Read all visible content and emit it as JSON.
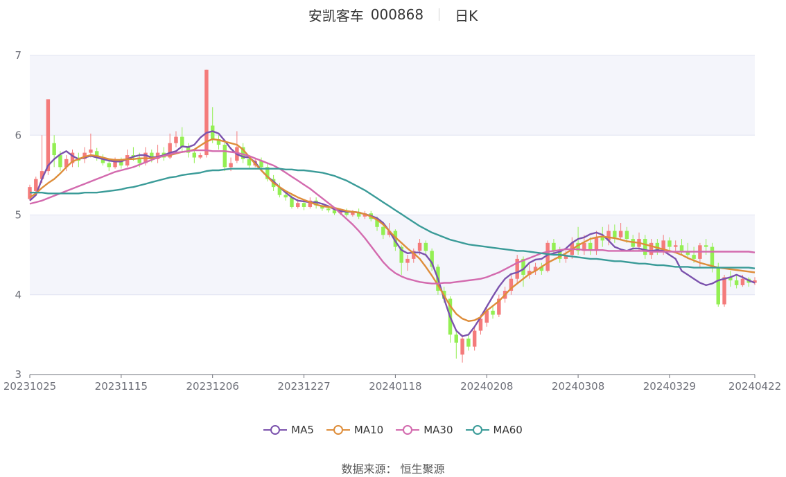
{
  "header": {
    "title": "安凯客车",
    "ticker": "000868",
    "period": "日K"
  },
  "source": "数据来源： 恒生聚源",
  "colors": {
    "up": "#f47b7b",
    "down": "#93ef53",
    "band": "#f4f5fb",
    "grid": "#e0e4f2",
    "axis": "#6e7079"
  },
  "chart_data": {
    "type": "candlestick",
    "y_ticks": [
      3,
      4,
      5,
      6,
      7
    ],
    "ylim": [
      3,
      7
    ],
    "x_tick_labels": [
      "20231025",
      "20231115",
      "20231206",
      "20231227",
      "20240118",
      "20240208",
      "20240308",
      "20240329",
      "20240422"
    ],
    "x_tick_index": [
      0,
      15,
      30,
      45,
      60,
      75,
      90,
      105,
      119
    ],
    "legend_position": "bottom",
    "series": [
      {
        "name": "MA5",
        "color": "#7b52ad",
        "values": [
          5.18,
          5.25,
          5.45,
          5.62,
          5.7,
          5.76,
          5.8,
          5.74,
          5.7,
          5.72,
          5.74,
          5.72,
          5.7,
          5.68,
          5.67,
          5.67,
          5.7,
          5.73,
          5.75,
          5.75,
          5.72,
          5.73,
          5.75,
          5.78,
          5.8,
          5.86,
          5.85,
          5.88,
          5.97,
          6.03,
          6.05,
          6.02,
          5.93,
          5.83,
          5.76,
          5.73,
          5.72,
          5.66,
          5.56,
          5.48,
          5.42,
          5.35,
          5.28,
          5.22,
          5.18,
          5.17,
          5.16,
          5.16,
          5.14,
          5.11,
          5.07,
          5.05,
          5.04,
          5.04,
          5.03,
          5.01,
          4.99,
          4.96,
          4.9,
          4.8,
          4.67,
          4.56,
          4.52,
          4.53,
          4.53,
          4.5,
          4.4,
          4.2,
          3.95,
          3.72,
          3.55,
          3.48,
          3.5,
          3.6,
          3.72,
          3.85,
          3.98,
          4.1,
          4.2,
          4.26,
          4.28,
          4.32,
          4.4,
          4.44,
          4.45,
          4.5,
          4.52,
          4.54,
          4.58,
          4.65,
          4.7,
          4.72,
          4.76,
          4.78,
          4.75,
          4.68,
          4.6,
          4.57,
          4.55,
          4.58,
          4.58,
          4.56,
          4.55,
          4.56,
          4.55,
          4.5,
          4.45,
          4.3,
          4.25,
          4.2,
          4.15,
          4.12,
          4.14,
          4.18,
          4.2,
          4.22,
          4.25,
          4.22,
          4.18,
          4.15
        ]
      },
      {
        "name": "MA10",
        "color": "#de8d3a",
        "values": [
          5.22,
          5.27,
          5.34,
          5.4,
          5.45,
          5.52,
          5.6,
          5.67,
          5.7,
          5.73,
          5.75,
          5.74,
          5.72,
          5.7,
          5.69,
          5.69,
          5.7,
          5.7,
          5.71,
          5.71,
          5.71,
          5.72,
          5.74,
          5.75,
          5.77,
          5.79,
          5.8,
          5.82,
          5.87,
          5.92,
          5.95,
          5.94,
          5.92,
          5.9,
          5.88,
          5.82,
          5.73,
          5.64,
          5.56,
          5.48,
          5.4,
          5.35,
          5.3,
          5.26,
          5.22,
          5.19,
          5.16,
          5.13,
          5.11,
          5.1,
          5.09,
          5.07,
          5.05,
          5.04,
          5.03,
          5.01,
          4.98,
          4.94,
          4.88,
          4.8,
          4.72,
          4.65,
          4.58,
          4.52,
          4.45,
          4.35,
          4.24,
          4.12,
          3.99,
          3.86,
          3.76,
          3.7,
          3.67,
          3.68,
          3.72,
          3.8,
          3.86,
          3.92,
          4.0,
          4.08,
          4.14,
          4.2,
          4.26,
          4.3,
          4.35,
          4.4,
          4.44,
          4.48,
          4.52,
          4.57,
          4.62,
          4.66,
          4.7,
          4.72,
          4.73,
          4.72,
          4.71,
          4.69,
          4.67,
          4.66,
          4.65,
          4.63,
          4.61,
          4.59,
          4.57,
          4.55,
          4.53,
          4.5,
          4.46,
          4.43,
          4.4,
          4.38,
          4.36,
          4.34,
          4.33,
          4.32,
          4.31,
          4.3,
          4.29,
          4.28
        ]
      },
      {
        "name": "MA30",
        "color": "#d36aae",
        "values": [
          5.14,
          5.16,
          5.18,
          5.21,
          5.24,
          5.27,
          5.3,
          5.33,
          5.36,
          5.39,
          5.42,
          5.45,
          5.48,
          5.51,
          5.54,
          5.56,
          5.58,
          5.6,
          5.63,
          5.66,
          5.69,
          5.72,
          5.74,
          5.76,
          5.78,
          5.79,
          5.8,
          5.81,
          5.81,
          5.81,
          5.8,
          5.8,
          5.8,
          5.79,
          5.78,
          5.76,
          5.74,
          5.71,
          5.68,
          5.65,
          5.62,
          5.58,
          5.53,
          5.48,
          5.43,
          5.38,
          5.33,
          5.27,
          5.21,
          5.15,
          5.09,
          5.02,
          4.95,
          4.88,
          4.8,
          4.71,
          4.61,
          4.51,
          4.41,
          4.33,
          4.27,
          4.23,
          4.2,
          4.18,
          4.16,
          4.15,
          4.14,
          4.14,
          4.15,
          4.15,
          4.16,
          4.17,
          4.18,
          4.19,
          4.2,
          4.22,
          4.25,
          4.28,
          4.32,
          4.36,
          4.4,
          4.43,
          4.46,
          4.49,
          4.52,
          4.54,
          4.55,
          4.56,
          4.57,
          4.57,
          4.57,
          4.56,
          4.56,
          4.56,
          4.56,
          4.55,
          4.55,
          4.55,
          4.55,
          4.55,
          4.55,
          4.55,
          4.54,
          4.54,
          4.54,
          4.54,
          4.54,
          4.54,
          4.54,
          4.54,
          4.54,
          4.54,
          4.54,
          4.54,
          4.54,
          4.54,
          4.54,
          4.54,
          4.54,
          4.53
        ]
      },
      {
        "name": "MA60",
        "color": "#3a9b98",
        "values": [
          5.28,
          5.28,
          5.28,
          5.27,
          5.27,
          5.27,
          5.27,
          5.27,
          5.27,
          5.28,
          5.28,
          5.28,
          5.29,
          5.3,
          5.31,
          5.32,
          5.34,
          5.35,
          5.37,
          5.39,
          5.41,
          5.43,
          5.45,
          5.47,
          5.48,
          5.5,
          5.51,
          5.52,
          5.53,
          5.55,
          5.56,
          5.56,
          5.57,
          5.58,
          5.58,
          5.58,
          5.58,
          5.58,
          5.58,
          5.58,
          5.58,
          5.58,
          5.57,
          5.57,
          5.56,
          5.56,
          5.55,
          5.54,
          5.53,
          5.51,
          5.49,
          5.46,
          5.43,
          5.39,
          5.35,
          5.31,
          5.26,
          5.21,
          5.16,
          5.11,
          5.06,
          5.01,
          4.96,
          4.91,
          4.86,
          4.82,
          4.78,
          4.75,
          4.72,
          4.69,
          4.67,
          4.65,
          4.63,
          4.62,
          4.61,
          4.6,
          4.59,
          4.58,
          4.57,
          4.56,
          4.55,
          4.55,
          4.54,
          4.53,
          4.52,
          4.51,
          4.5,
          4.5,
          4.49,
          4.48,
          4.47,
          4.46,
          4.45,
          4.45,
          4.44,
          4.43,
          4.42,
          4.42,
          4.41,
          4.4,
          4.39,
          4.39,
          4.38,
          4.37,
          4.37,
          4.36,
          4.35,
          4.35,
          4.35,
          4.34,
          4.34,
          4.34,
          4.34,
          4.34,
          4.34,
          4.34,
          4.34,
          4.34,
          4.34,
          4.33
        ]
      }
    ],
    "candles": [
      [
        5.2,
        5.35,
        5.38,
        5.18
      ],
      [
        5.3,
        5.45,
        5.48,
        5.28
      ],
      [
        5.45,
        5.55,
        6.0,
        5.4
      ],
      [
        5.55,
        6.45,
        6.45,
        5.5
      ],
      [
        5.9,
        5.75,
        6.0,
        5.6
      ],
      [
        5.75,
        5.6,
        5.8,
        5.55
      ],
      [
        5.6,
        5.7,
        5.75,
        5.55
      ],
      [
        5.65,
        5.78,
        5.82,
        5.6
      ],
      [
        5.72,
        5.68,
        5.78,
        5.6
      ],
      [
        5.7,
        5.78,
        5.85,
        5.65
      ],
      [
        5.78,
        5.82,
        6.02,
        5.72
      ],
      [
        5.8,
        5.72,
        5.84,
        5.68
      ],
      [
        5.72,
        5.65,
        5.76,
        5.62
      ],
      [
        5.65,
        5.6,
        5.7,
        5.55
      ],
      [
        5.6,
        5.68,
        5.72,
        5.58
      ],
      [
        5.68,
        5.62,
        5.72,
        5.58
      ],
      [
        5.62,
        5.75,
        5.82,
        5.6
      ],
      [
        5.75,
        5.72,
        5.85,
        5.68
      ],
      [
        5.72,
        5.65,
        5.78,
        5.6
      ],
      [
        5.65,
        5.78,
        5.85,
        5.62
      ],
      [
        5.78,
        5.7,
        5.82,
        5.66
      ],
      [
        5.7,
        5.78,
        5.88,
        5.65
      ],
      [
        5.78,
        5.72,
        5.85,
        5.68
      ],
      [
        5.72,
        5.9,
        6.02,
        5.7
      ],
      [
        5.9,
        5.98,
        6.05,
        5.85
      ],
      [
        5.98,
        5.85,
        6.1,
        5.8
      ],
      [
        5.85,
        5.78,
        5.9,
        5.72
      ],
      [
        5.78,
        5.72,
        5.82,
        5.65
      ],
      [
        5.72,
        5.75,
        5.78,
        5.7
      ],
      [
        5.75,
        6.82,
        6.82,
        5.72
      ],
      [
        6.12,
        5.95,
        6.35,
        5.9
      ],
      [
        5.95,
        5.88,
        6.0,
        5.82
      ],
      [
        5.88,
        5.6,
        5.92,
        5.55
      ],
      [
        5.6,
        5.65,
        5.72,
        5.55
      ],
      [
        5.68,
        5.85,
        6.05,
        5.65
      ],
      [
        5.85,
        5.7,
        5.9,
        5.65
      ],
      [
        5.7,
        5.62,
        5.75,
        5.58
      ],
      [
        5.62,
        5.68,
        5.72,
        5.6
      ],
      [
        5.68,
        5.6,
        5.72,
        5.55
      ],
      [
        5.6,
        5.45,
        5.65,
        5.42
      ],
      [
        5.45,
        5.35,
        5.5,
        5.3
      ],
      [
        5.35,
        5.25,
        5.4,
        5.22
      ],
      [
        5.25,
        5.22,
        5.3,
        5.18
      ],
      [
        5.22,
        5.1,
        5.25,
        5.08
      ],
      [
        5.1,
        5.15,
        5.2,
        5.08
      ],
      [
        5.15,
        5.1,
        5.18,
        5.06
      ],
      [
        5.1,
        5.18,
        5.22,
        5.08
      ],
      [
        5.18,
        5.12,
        5.22,
        5.08
      ],
      [
        5.12,
        5.08,
        5.15,
        5.05
      ],
      [
        5.08,
        5.06,
        5.12,
        5.03
      ],
      [
        5.06,
        5.02,
        5.1,
        5.0
      ],
      [
        5.02,
        5.05,
        5.08,
        5.0
      ],
      [
        5.05,
        5.0,
        5.08,
        4.98
      ],
      [
        5.0,
        5.04,
        5.06,
        4.98
      ],
      [
        5.04,
        4.98,
        5.08,
        4.95
      ],
      [
        4.98,
        5.02,
        5.05,
        4.95
      ],
      [
        5.02,
        4.95,
        5.05,
        4.92
      ],
      [
        4.95,
        4.85,
        4.98,
        4.8
      ],
      [
        4.85,
        4.75,
        4.88,
        4.7
      ],
      [
        4.75,
        4.8,
        4.9,
        4.72
      ],
      [
        4.8,
        4.6,
        4.82,
        4.55
      ],
      [
        4.6,
        4.4,
        4.62,
        4.25
      ],
      [
        4.4,
        4.45,
        4.5,
        4.3
      ],
      [
        4.45,
        4.55,
        4.58,
        4.4
      ],
      [
        4.55,
        4.65,
        4.7,
        4.5
      ],
      [
        4.65,
        4.55,
        4.68,
        4.48
      ],
      [
        4.55,
        4.35,
        4.58,
        4.3
      ],
      [
        4.35,
        4.05,
        4.38,
        4.0
      ],
      [
        4.05,
        3.95,
        4.1,
        3.9
      ],
      [
        3.95,
        3.5,
        3.98,
        3.4
      ],
      [
        3.5,
        3.4,
        3.55,
        3.2
      ],
      [
        3.25,
        3.45,
        3.5,
        3.15
      ],
      [
        3.45,
        3.35,
        3.5,
        3.3
      ],
      [
        3.35,
        3.55,
        3.6,
        3.3
      ],
      [
        3.55,
        3.7,
        3.75,
        3.5
      ],
      [
        3.65,
        3.8,
        3.85,
        3.6
      ],
      [
        3.8,
        3.75,
        3.85,
        3.7
      ],
      [
        3.75,
        3.95,
        4.0,
        3.72
      ],
      [
        3.95,
        4.05,
        4.1,
        3.9
      ],
      [
        4.05,
        4.2,
        4.25,
        4.0
      ],
      [
        4.2,
        4.45,
        4.5,
        4.15
      ],
      [
        4.45,
        4.25,
        4.48,
        4.1
      ],
      [
        4.25,
        4.3,
        4.38,
        4.2
      ],
      [
        4.3,
        4.35,
        4.4,
        4.25
      ],
      [
        4.35,
        4.3,
        4.4,
        4.25
      ],
      [
        4.3,
        4.65,
        4.68,
        4.28
      ],
      [
        4.65,
        4.55,
        4.7,
        4.5
      ],
      [
        4.55,
        4.45,
        4.6,
        4.4
      ],
      [
        4.45,
        4.5,
        4.55,
        4.4
      ],
      [
        4.5,
        4.65,
        4.72,
        4.45
      ],
      [
        4.65,
        4.55,
        4.85,
        4.5
      ],
      [
        4.55,
        4.65,
        4.75,
        4.5
      ],
      [
        4.65,
        4.55,
        4.72,
        4.5
      ],
      [
        4.55,
        4.72,
        4.8,
        4.5
      ],
      [
        4.72,
        4.68,
        4.85,
        4.6
      ],
      [
        4.68,
        4.8,
        4.88,
        4.62
      ],
      [
        4.8,
        4.72,
        4.88,
        4.65
      ],
      [
        4.72,
        4.8,
        4.9,
        4.68
      ],
      [
        4.8,
        4.7,
        4.85,
        4.65
      ],
      [
        4.7,
        4.6,
        4.75,
        4.55
      ],
      [
        4.6,
        4.7,
        4.78,
        4.55
      ],
      [
        4.7,
        4.5,
        4.75,
        4.45
      ],
      [
        4.5,
        4.65,
        4.7,
        4.45
      ],
      [
        4.65,
        4.55,
        4.7,
        4.5
      ],
      [
        4.55,
        4.68,
        4.75,
        4.5
      ],
      [
        4.68,
        4.6,
        4.72,
        4.55
      ],
      [
        4.6,
        4.62,
        4.68,
        4.55
      ],
      [
        4.62,
        4.55,
        4.7,
        4.5
      ],
      [
        4.55,
        4.5,
        4.65,
        4.45
      ],
      [
        4.5,
        4.45,
        4.6,
        4.4
      ],
      [
        4.45,
        4.62,
        4.65,
        4.35
      ],
      [
        4.62,
        4.6,
        4.7,
        4.5
      ],
      [
        4.6,
        4.35,
        4.65,
        4.28
      ],
      [
        4.35,
        3.88,
        4.4,
        3.85
      ],
      [
        3.88,
        4.22,
        4.25,
        3.85
      ],
      [
        4.22,
        4.18,
        4.3,
        4.1
      ],
      [
        4.18,
        4.12,
        4.25,
        4.08
      ],
      [
        4.12,
        4.2,
        4.25,
        4.1
      ],
      [
        4.2,
        4.15,
        4.22,
        4.1
      ],
      [
        4.15,
        4.18,
        4.22,
        4.12
      ]
    ]
  },
  "legend": [
    {
      "label": "MA5",
      "color": "#7b52ad"
    },
    {
      "label": "MA10",
      "color": "#de8d3a"
    },
    {
      "label": "MA30",
      "color": "#d36aae"
    },
    {
      "label": "MA60",
      "color": "#3a9b98"
    }
  ]
}
